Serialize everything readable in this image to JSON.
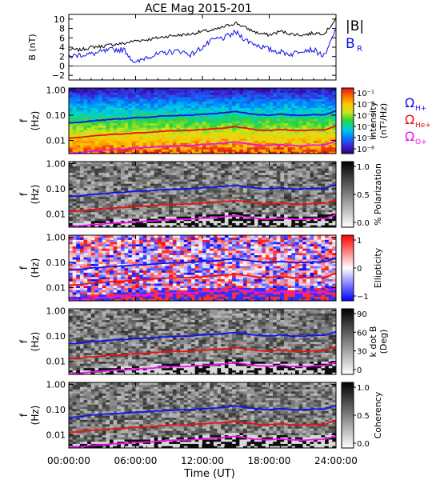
{
  "title": "ACE Mag 2015-201",
  "time_axis": {
    "label": "Time (UT)",
    "ticks": [
      "00:00:00",
      "06:00:00",
      "12:00:00",
      "18:00:00",
      "24:00:00"
    ],
    "tick_hours": [
      0,
      6,
      12,
      18,
      24
    ],
    "xlim": [
      0,
      24
    ]
  },
  "legend": {
    "b_total": "|B|",
    "b_r": "B",
    "b_r_sub": "R",
    "omega": "Ω",
    "h_sub": "H+",
    "he_sub": "He+",
    "o_sub": "O+"
  },
  "colors": {
    "b_total": "#000000",
    "b_r": "#1010ee",
    "omega_h": "#1010ee",
    "omega_he": "#ee1010",
    "omega_o": "#ee10ee"
  },
  "freq_axis": {
    "ylabel_line1": "f",
    "ylabel_line2": "(Hz)",
    "ticks": [
      "1.00",
      "0.10",
      "0.01"
    ],
    "tick_values": [
      1.0,
      0.1,
      0.01
    ],
    "ylim": [
      0.003,
      1.2
    ],
    "scale": "log"
  },
  "chart_data": [
    {
      "type": "line",
      "panel": "magnetic-field",
      "ylabel_line1": "B",
      "ylabel_line2": "(nT)",
      "ylim": [
        -3,
        11
      ],
      "yticks": [
        -2,
        0,
        2,
        4,
        6,
        8,
        10
      ],
      "x": [
        0,
        1,
        2,
        3,
        4,
        5,
        6,
        7,
        8,
        9,
        10,
        11,
        12,
        13,
        14,
        15,
        16,
        17,
        18,
        19,
        20,
        21,
        22,
        23,
        24
      ],
      "series": [
        {
          "name": "|B|",
          "color": "#000000",
          "values": [
            3.5,
            3.4,
            4.0,
            4.2,
            4.6,
            4.8,
            5.4,
            5.6,
            6.0,
            6.4,
            6.6,
            6.8,
            7.4,
            7.6,
            8.4,
            9.2,
            8.0,
            7.0,
            6.6,
            7.4,
            6.8,
            6.6,
            7.0,
            7.0,
            10.0
          ]
        },
        {
          "name": "B",
          "color": "#1010ee",
          "values": [
            2.0,
            2.4,
            2.5,
            3.0,
            3.5,
            3.4,
            0.5,
            2.0,
            2.4,
            3.0,
            3.2,
            2.4,
            4.0,
            5.6,
            6.0,
            7.2,
            5.4,
            4.4,
            3.5,
            3.0,
            2.5,
            3.5,
            3.4,
            2.0,
            8.0
          ]
        }
      ]
    },
    {
      "type": "heatmap",
      "panel": "intensity",
      "colorbar_label": "Intensity",
      "colorbar_units": "(nT²/Hz)",
      "colorbar_ticks": [
        "10⁻¹",
        "10⁻²",
        "10⁻³",
        "10⁻⁴",
        "10⁻⁵",
        "10⁻⁶"
      ],
      "colorbar_scale": "log",
      "colormap": "rainbow"
    },
    {
      "type": "heatmap",
      "panel": "polarization",
      "colorbar_label": "% Polarization",
      "colorbar_ticks": [
        "1.0",
        "0.5",
        "0.0"
      ],
      "colormap": "gray"
    },
    {
      "type": "heatmap",
      "panel": "ellipticity",
      "colorbar_label": "Ellipticity",
      "colorbar_ticks": [
        "1",
        "0",
        "−1"
      ],
      "colormap": "blue-white-red"
    },
    {
      "type": "heatmap",
      "panel": "wave-normal-angle",
      "colorbar_label": "k dot B",
      "colorbar_units": "(Deg)",
      "colorbar_ticks": [
        "90",
        "60",
        "30",
        "0"
      ],
      "colormap": "gray"
    },
    {
      "type": "heatmap",
      "panel": "coherency",
      "colorbar_label": "Coherency",
      "colorbar_ticks": [
        "1.0",
        "0.5",
        "0.0"
      ],
      "colormap": "gray"
    },
    {
      "type": "line",
      "panel": "gyrofrequencies",
      "units": "Hz",
      "x": [
        0,
        1,
        2,
        3,
        4,
        5,
        6,
        7,
        8,
        9,
        10,
        11,
        12,
        13,
        14,
        15,
        16,
        17,
        18,
        19,
        20,
        21,
        22,
        23,
        24
      ],
      "series": [
        {
          "name": "ΩH+",
          "color": "#1010ee",
          "values": [
            0.05,
            0.052,
            0.06,
            0.064,
            0.07,
            0.072,
            0.08,
            0.082,
            0.09,
            0.095,
            0.098,
            0.1,
            0.11,
            0.115,
            0.125,
            0.14,
            0.12,
            0.105,
            0.1,
            0.11,
            0.1,
            0.098,
            0.105,
            0.105,
            0.15
          ]
        },
        {
          "name": "ΩHe+",
          "color": "#ee1010",
          "values": [
            0.0125,
            0.013,
            0.015,
            0.016,
            0.0175,
            0.018,
            0.02,
            0.0205,
            0.0225,
            0.024,
            0.0245,
            0.025,
            0.0275,
            0.029,
            0.031,
            0.035,
            0.03,
            0.026,
            0.025,
            0.0275,
            0.025,
            0.0245,
            0.026,
            0.026,
            0.0375
          ]
        },
        {
          "name": "ΩO+",
          "color": "#ee10ee",
          "values": [
            0.0031,
            0.0033,
            0.0038,
            0.004,
            0.0044,
            0.0045,
            0.005,
            0.0051,
            0.0056,
            0.006,
            0.0061,
            0.0063,
            0.0069,
            0.0072,
            0.0078,
            0.0088,
            0.0075,
            0.0066,
            0.0063,
            0.0069,
            0.0063,
            0.0061,
            0.0066,
            0.0066,
            0.0094
          ]
        }
      ]
    }
  ]
}
